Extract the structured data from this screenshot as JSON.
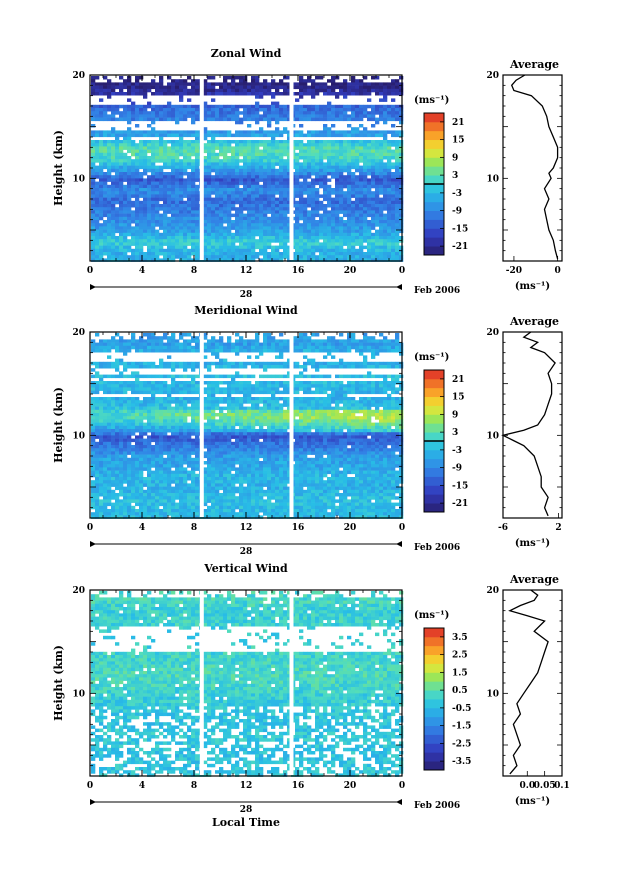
{
  "panels_meta": {
    "date_label": "Feb 2006",
    "day_label": "28",
    "xaxis_label": "Local Time"
  },
  "chart_data": [
    {
      "type": "heatmap",
      "id": "zonal",
      "title": "Zonal Wind",
      "ylabel": "Height (km)",
      "xlabel": "",
      "xlim": [
        0,
        24
      ],
      "ylim": [
        2,
        20
      ],
      "xticks": [
        "0",
        "4",
        "8",
        "12",
        "16",
        "20",
        "0"
      ],
      "xtick_values": [
        0,
        4,
        8,
        12,
        16,
        20,
        24
      ],
      "yticks": [
        "10",
        "20"
      ],
      "ytick_values": [
        10,
        20
      ],
      "colorbar": {
        "unit": "(ms⁻¹)",
        "range": [
          -24,
          24
        ],
        "ticks": [
          "21",
          "15",
          "9",
          "3",
          "-3",
          "-9",
          "-15",
          "-21"
        ],
        "tick_values": [
          21,
          15,
          9,
          3,
          -3,
          -9,
          -15,
          -21
        ],
        "marker_value": 0
      },
      "gaps_hours": [
        8.6,
        15.5
      ],
      "profile_rows": [
        {
          "h": 3,
          "v": -4
        },
        {
          "h": 4,
          "v": 0
        },
        {
          "h": 5,
          "v": -6
        },
        {
          "h": 6,
          "v": -8
        },
        {
          "h": 7,
          "v": -10
        },
        {
          "h": 8,
          "v": -12
        },
        {
          "h": 9,
          "v": -8
        },
        {
          "h": 10,
          "v": -14
        },
        {
          "h": 11,
          "v": -6
        },
        {
          "h": 12,
          "v": 1
        },
        {
          "h": 13,
          "v": 3
        },
        {
          "h": 14,
          "v": -4
        },
        {
          "h": 15,
          "v": -8
        },
        {
          "h": 16,
          "v": -10
        },
        {
          "h": 17,
          "v": -12
        },
        {
          "h": 18,
          "v": -18
        },
        {
          "h": 19,
          "v": -22
        }
      ],
      "average": {
        "title": "Average",
        "unit": "(ms⁻¹)",
        "xlim": [
          -25,
          2
        ],
        "xticks": [
          "-20",
          "0"
        ],
        "xtick_values": [
          -20,
          0
        ],
        "yticks": [
          "10",
          "20"
        ],
        "ytick_values": [
          10,
          20
        ],
        "profile": [
          [
            2.2,
            0
          ],
          [
            3,
            -1
          ],
          [
            4,
            -2
          ],
          [
            5,
            -4
          ],
          [
            6,
            -5
          ],
          [
            7,
            -6
          ],
          [
            8,
            -4
          ],
          [
            9,
            -6
          ],
          [
            10,
            -3
          ],
          [
            10.5,
            -4
          ],
          [
            11,
            -2
          ],
          [
            12,
            0
          ],
          [
            13,
            0
          ],
          [
            14,
            -2
          ],
          [
            15,
            -4
          ],
          [
            16,
            -5
          ],
          [
            17,
            -7
          ],
          [
            18,
            -12
          ],
          [
            18.5,
            -20
          ],
          [
            19,
            -21
          ],
          [
            19.5,
            -19
          ],
          [
            20,
            -15
          ]
        ]
      }
    },
    {
      "type": "heatmap",
      "id": "meridional",
      "title": "Meridional Wind",
      "ylabel": "Height (km)",
      "xlabel": "",
      "xlim": [
        0,
        24
      ],
      "ylim": [
        2,
        20
      ],
      "xticks": [
        "0",
        "4",
        "8",
        "12",
        "16",
        "20",
        "0"
      ],
      "xtick_values": [
        0,
        4,
        8,
        12,
        16,
        20,
        24
      ],
      "yticks": [
        "10",
        "20"
      ],
      "ytick_values": [
        10,
        20
      ],
      "colorbar": {
        "unit": "(ms⁻¹)",
        "range": [
          -24,
          24
        ],
        "ticks": [
          "21",
          "15",
          "9",
          "3",
          "-3",
          "-9",
          "-15",
          "-21"
        ],
        "tick_values": [
          21,
          15,
          9,
          3,
          -3,
          -9,
          -15,
          -21
        ],
        "marker_value": 0
      },
      "gaps_hours": [
        8.6,
        15.5
      ],
      "profile_rows": [
        {
          "h": 3,
          "v": -3
        },
        {
          "h": 4,
          "v": -2
        },
        {
          "h": 5,
          "v": -4
        },
        {
          "h": 6,
          "v": -3
        },
        {
          "h": 7,
          "v": -5
        },
        {
          "h": 8,
          "v": -6
        },
        {
          "h": 9,
          "v": -10
        },
        {
          "h": 10,
          "v": -14
        },
        {
          "h": 11,
          "v": -4
        },
        {
          "h": 12,
          "v": 2
        },
        {
          "h": 13,
          "v": -3
        },
        {
          "h": 14,
          "v": -4
        },
        {
          "h": 15,
          "v": -3
        },
        {
          "h": 16,
          "v": -2
        },
        {
          "h": 17,
          "v": -4
        },
        {
          "h": 18,
          "v": -3
        },
        {
          "h": 19,
          "v": -6
        }
      ],
      "average": {
        "title": "Average",
        "unit": "(ms⁻¹)",
        "xlim": [
          -6,
          2.5
        ],
        "xticks": [
          "-6",
          "2"
        ],
        "xtick_values": [
          -6,
          2
        ],
        "yticks": [
          "10",
          "20"
        ],
        "ytick_values": [
          10,
          20
        ],
        "profile": [
          [
            2.2,
            0.5
          ],
          [
            3,
            0
          ],
          [
            4,
            0.5
          ],
          [
            5,
            -0.5
          ],
          [
            6,
            -0.5
          ],
          [
            7,
            -1
          ],
          [
            8,
            -1.5
          ],
          [
            9,
            -3
          ],
          [
            9.5,
            -4.5
          ],
          [
            10,
            -6
          ],
          [
            10.5,
            -3
          ],
          [
            11,
            -1
          ],
          [
            12,
            0
          ],
          [
            13,
            0.5
          ],
          [
            14,
            1
          ],
          [
            15,
            1
          ],
          [
            16,
            0.5
          ],
          [
            17,
            1.5
          ],
          [
            18,
            0
          ],
          [
            18.5,
            -2
          ],
          [
            19,
            -1
          ],
          [
            19.5,
            -3
          ],
          [
            20,
            -2
          ]
        ]
      }
    },
    {
      "type": "heatmap",
      "id": "vertical",
      "title": "Vertical Wind",
      "ylabel": "Height (km)",
      "xlabel": "Local Time",
      "xlim": [
        0,
        24
      ],
      "ylim": [
        2,
        20
      ],
      "xticks": [
        "0",
        "4",
        "8",
        "12",
        "16",
        "20",
        "0"
      ],
      "xtick_values": [
        0,
        4,
        8,
        12,
        16,
        20,
        24
      ],
      "yticks": [
        "10",
        "20"
      ],
      "ytick_values": [
        10,
        20
      ],
      "colorbar": {
        "unit": "(ms⁻¹)",
        "range": [
          -4,
          4
        ],
        "ticks": [
          "3.5",
          "2.5",
          "1.5",
          "0.5",
          "-0.5",
          "-1.5",
          "-2.5",
          "-3.5"
        ],
        "tick_values": [
          3.5,
          2.5,
          1.5,
          0.5,
          -0.5,
          -1.5,
          -2.5,
          -3.5
        ],
        "marker_value": null
      },
      "gaps_hours": [
        8.6,
        15.5
      ],
      "profile_rows": [
        {
          "h": 3,
          "v": -0.2
        },
        {
          "h": 4,
          "v": -0.3
        },
        {
          "h": 5,
          "v": -0.2
        },
        {
          "h": 6,
          "v": -0.1
        },
        {
          "h": 7,
          "v": -0.3
        },
        {
          "h": 8,
          "v": -0.2
        },
        {
          "h": 9,
          "v": -0.1
        },
        {
          "h": 10,
          "v": 0.0
        },
        {
          "h": 11,
          "v": 0.2
        },
        {
          "h": 12,
          "v": 0.3
        },
        {
          "h": 13,
          "v": 0.2
        },
        {
          "h": 16,
          "v": -0.1
        },
        {
          "h": 17,
          "v": 0.1
        },
        {
          "h": 18,
          "v": 0.0
        },
        {
          "h": 19,
          "v": 0.2
        }
      ],
      "average": {
        "title": "Average",
        "unit": "(ms⁻¹)",
        "xlim": [
          -0.07,
          0.1
        ],
        "xticks": [
          "0.0",
          "0.05",
          "0.1"
        ],
        "xtick_values": [
          0.0,
          0.05,
          0.1
        ],
        "yticks": [
          "10",
          "20"
        ],
        "ytick_values": [
          10,
          20
        ],
        "profile": [
          [
            2.2,
            -0.05
          ],
          [
            3,
            -0.03
          ],
          [
            4,
            -0.04
          ],
          [
            5,
            -0.02
          ],
          [
            6,
            -0.03
          ],
          [
            7,
            -0.04
          ],
          [
            8,
            -0.02
          ],
          [
            9,
            -0.03
          ],
          [
            10,
            -0.01
          ],
          [
            11,
            0.01
          ],
          [
            12,
            0.03
          ],
          [
            13,
            0.04
          ],
          [
            14,
            0.05
          ],
          [
            15,
            0.06
          ],
          [
            16,
            0.02
          ],
          [
            17,
            0.05
          ],
          [
            17.5,
            0.0
          ],
          [
            18,
            -0.05
          ],
          [
            18.5,
            -0.02
          ],
          [
            19,
            0.02
          ],
          [
            19.5,
            0.03
          ],
          [
            20,
            0.01
          ]
        ]
      }
    }
  ]
}
